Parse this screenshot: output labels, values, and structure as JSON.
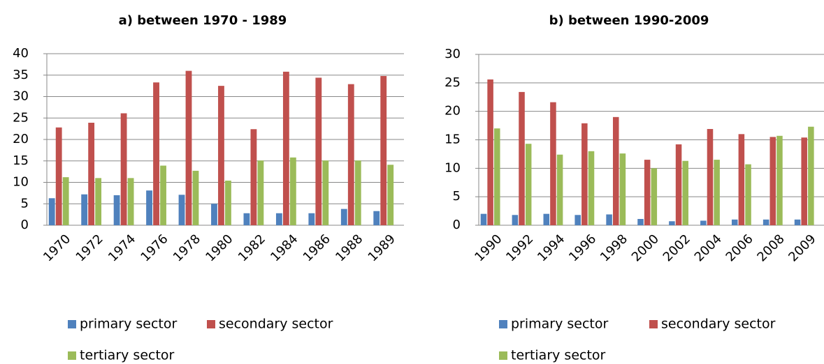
{
  "chart_data": [
    {
      "type": "bar",
      "title": "a) between 1970 - 1989",
      "categories": [
        "1970",
        "1972",
        "1974",
        "1976",
        "1978",
        "1980",
        "1982",
        "1984",
        "1986",
        "1988",
        "1989"
      ],
      "series": [
        {
          "name": "primary sector",
          "color": "#4f81bd",
          "values": [
            6.3,
            7.2,
            7,
            8.1,
            7.1,
            5,
            2.8,
            2.8,
            2.8,
            3.8,
            3.3
          ]
        },
        {
          "name": "secondary sector",
          "color": "#c0504d",
          "values": [
            22.8,
            23.9,
            26.1,
            33.3,
            36,
            32.5,
            22.4,
            35.8,
            34.4,
            32.9,
            34.8
          ]
        },
        {
          "name": "tertiary sector",
          "color": "#9bbb59",
          "values": [
            11.2,
            11,
            11,
            13.9,
            12.7,
            10.4,
            15.1,
            15.8,
            15.1,
            15.1,
            14.1
          ]
        }
      ],
      "ylim": [
        0,
        40
      ],
      "yticks": [
        0,
        5,
        10,
        15,
        20,
        25,
        30,
        35,
        40
      ],
      "grid": true,
      "legend": "bottom"
    },
    {
      "type": "bar",
      "title": "b) between 1990-2009",
      "categories": [
        "1990",
        "1992",
        "1994",
        "1996",
        "1998",
        "2000",
        "2002",
        "2004",
        "2006",
        "2008",
        "2009"
      ],
      "series": [
        {
          "name": "primary sector",
          "color": "#4f81bd",
          "values": [
            2,
            1.8,
            2,
            1.8,
            1.9,
            1.1,
            0.7,
            0.8,
            1,
            1,
            1
          ]
        },
        {
          "name": "secondary sector",
          "color": "#c0504d",
          "values": [
            25.6,
            23.4,
            21.6,
            17.9,
            19,
            11.5,
            14.2,
            16.9,
            16,
            15.5,
            15.4
          ]
        },
        {
          "name": "tertiary sector",
          "color": "#9bbb59",
          "values": [
            17,
            14.3,
            12.4,
            13,
            12.6,
            10,
            11.3,
            11.5,
            10.7,
            15.7,
            17.3
          ]
        }
      ],
      "ylim": [
        0,
        30
      ],
      "yticks": [
        0,
        5,
        10,
        15,
        20,
        25,
        30
      ],
      "grid": true,
      "legend": "bottom"
    }
  ]
}
